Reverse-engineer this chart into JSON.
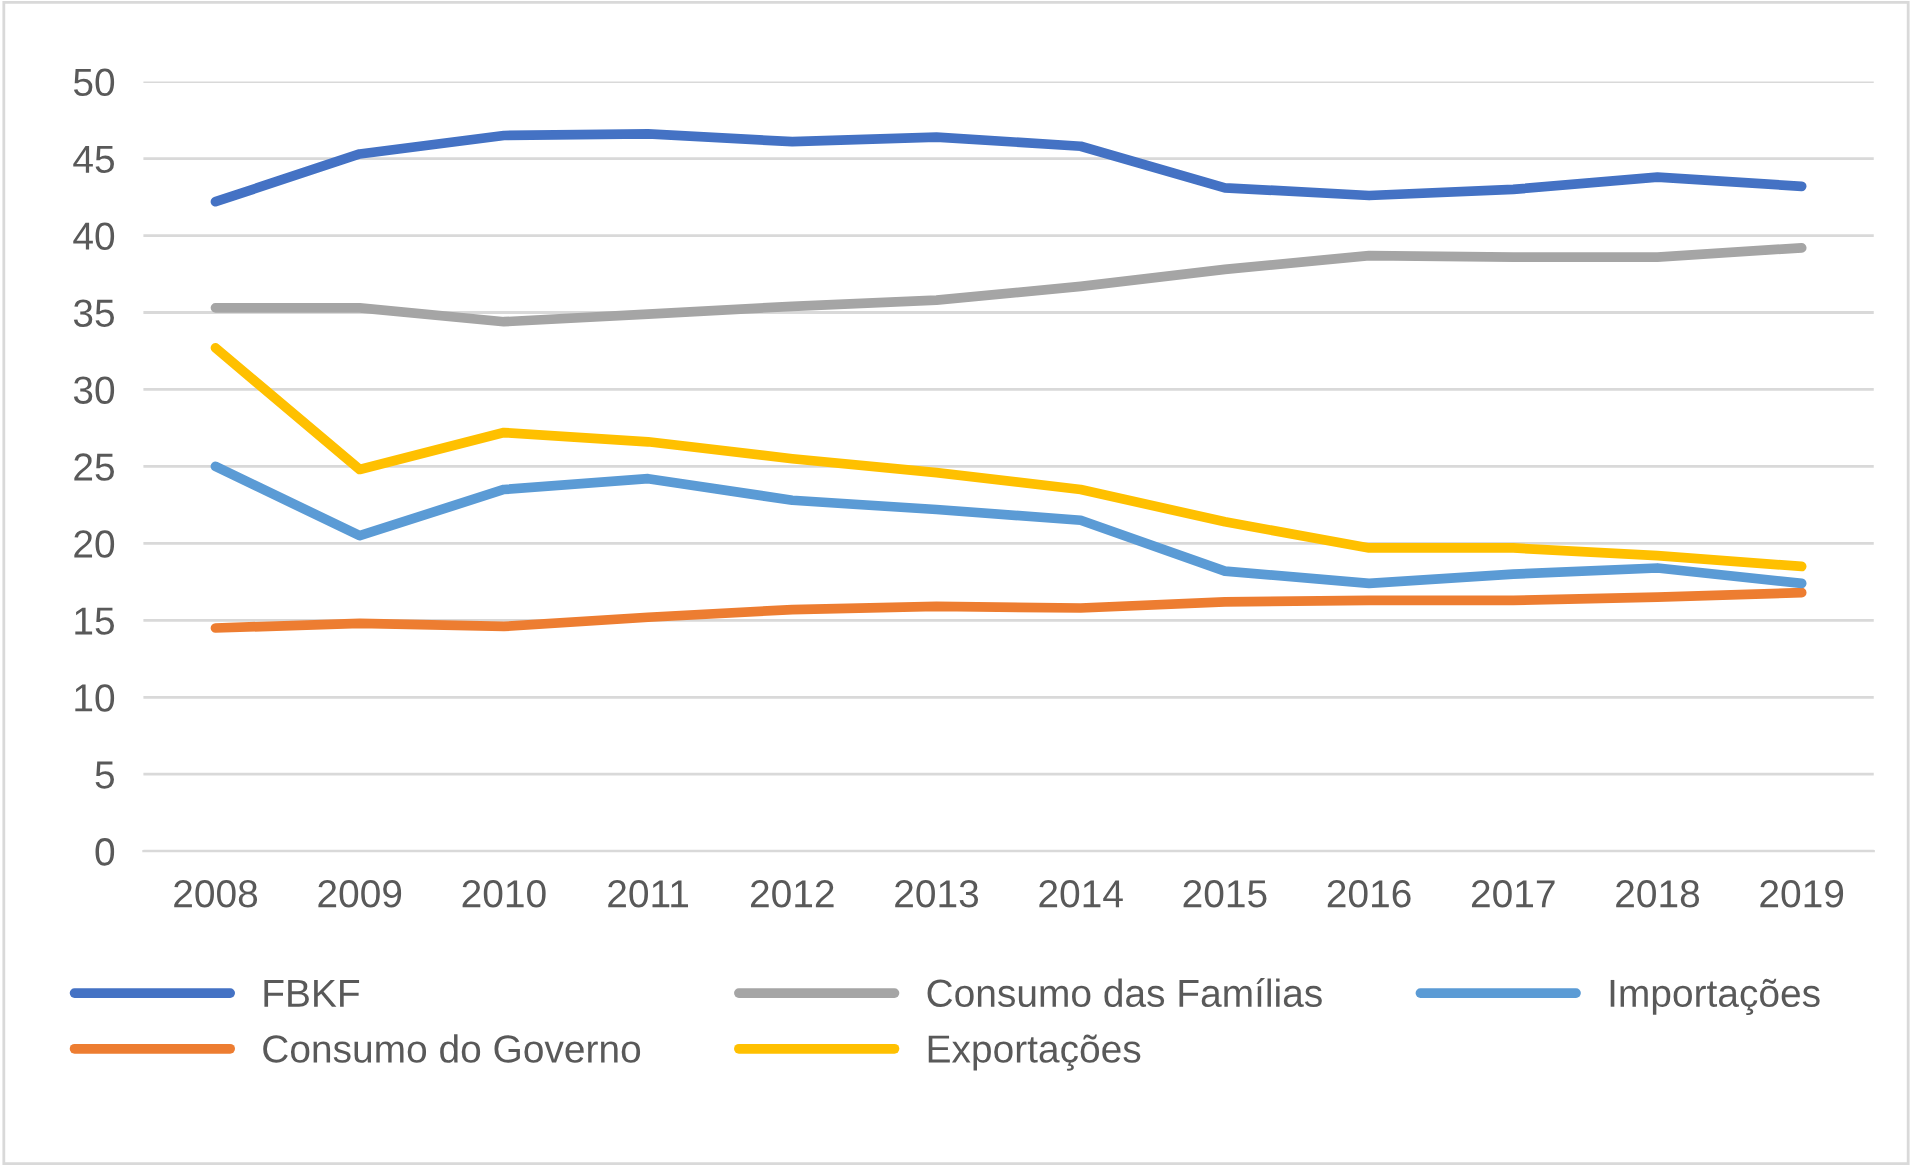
{
  "chart_data": {
    "type": "line",
    "categories": [
      "2008",
      "2009",
      "2010",
      "2011",
      "2012",
      "2013",
      "2014",
      "2015",
      "2016",
      "2017",
      "2018",
      "2019"
    ],
    "series": [
      {
        "name": "FBKF",
        "color": "#4472c4",
        "values": [
          42.2,
          45.3,
          46.5,
          46.6,
          46.1,
          46.4,
          45.8,
          43.1,
          42.6,
          43.0,
          43.8,
          43.2
        ]
      },
      {
        "name": "Consumo do Governo",
        "color": "#ed7d31",
        "values": [
          14.5,
          14.8,
          14.6,
          15.2,
          15.7,
          15.9,
          15.8,
          16.2,
          16.3,
          16.3,
          16.5,
          16.8
        ]
      },
      {
        "name": "Consumo das Famílias",
        "color": "#a5a5a5",
        "values": [
          35.3,
          35.3,
          34.4,
          34.9,
          35.4,
          35.8,
          36.7,
          37.8,
          38.7,
          38.6,
          38.6,
          39.2
        ]
      },
      {
        "name": "Exportações",
        "color": "#ffc000",
        "values": [
          32.7,
          24.8,
          27.2,
          26.6,
          25.5,
          24.6,
          23.5,
          21.4,
          19.7,
          19.7,
          19.2,
          18.5
        ]
      },
      {
        "name": "Importações",
        "color": "#5b9bd5",
        "values": [
          25.0,
          20.5,
          23.5,
          24.2,
          22.8,
          22.2,
          21.5,
          18.2,
          17.4,
          18.0,
          18.4,
          17.4
        ]
      }
    ],
    "ylim": [
      0,
      50
    ],
    "yticks": [
      0,
      5,
      10,
      15,
      20,
      25,
      30,
      35,
      40,
      45,
      50
    ],
    "grid": "y",
    "legend": "bottom",
    "marker": "none",
    "line_style": "solid"
  }
}
